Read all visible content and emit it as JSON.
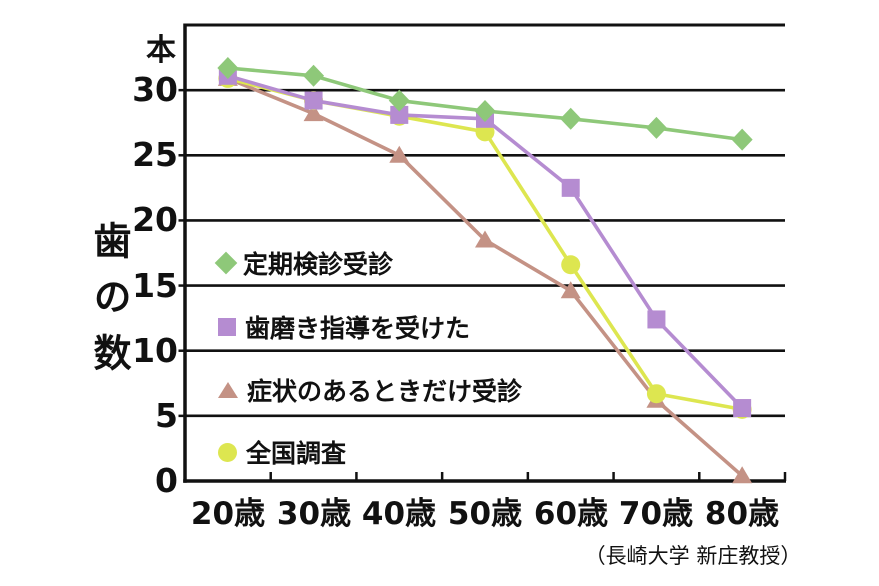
{
  "page": {
    "background": "#ffffff"
  },
  "chart_data": {
    "type": "line",
    "title": "",
    "unit_label": "本",
    "ylabel": "歯の数",
    "xlabel": "",
    "categories": [
      "20歳",
      "30歳",
      "40歳",
      "50歳",
      "60歳",
      "70歳",
      "80歳"
    ],
    "yticks": [
      0,
      5,
      10,
      15,
      20,
      25,
      30
    ],
    "ylim": [
      0,
      35
    ],
    "grid": "horizontal",
    "grid_color": "#111111",
    "legend_position": "inside-left",
    "series": [
      {
        "name": "定期検診受診",
        "marker": "diamond",
        "color": "#8ec879",
        "values": [
          31.7,
          31.1,
          29.2,
          28.4,
          27.8,
          27.1,
          26.2
        ]
      },
      {
        "name": "歯磨き指導を受けた",
        "marker": "square",
        "color": "#b58cd1",
        "values": [
          31.1,
          29.2,
          28.1,
          27.8,
          22.5,
          12.4,
          5.6
        ]
      },
      {
        "name": "症状のあるときだけ受診",
        "marker": "triangle",
        "color": "#c49285",
        "values": [
          30.9,
          28.2,
          25.0,
          18.5,
          14.6,
          6.2,
          0.4
        ]
      },
      {
        "name": "全国調査",
        "marker": "circle",
        "color": "#dde650",
        "values": [
          30.9,
          29.2,
          28.0,
          26.8,
          16.6,
          6.7,
          5.5
        ]
      }
    ],
    "caption": "（長崎大学 新庄教授）"
  }
}
